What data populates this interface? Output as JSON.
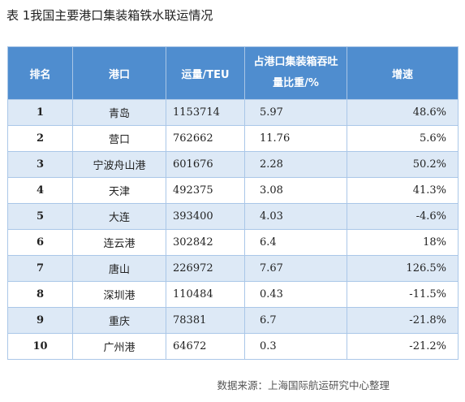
{
  "title": "表 1我国主要港口集装箱铁水联运情况",
  "table": {
    "headers": {
      "rank": "排名",
      "port": "港口",
      "volume": "运量/TEU",
      "share_line1": "占港口集装箱吞吐",
      "share_line2": "量比重/%",
      "growth": "增速"
    },
    "rows": [
      {
        "rank": "1",
        "port": "青岛",
        "volume": "1153714",
        "share": "5.97",
        "growth": "48.6%"
      },
      {
        "rank": "2",
        "port": "营口",
        "volume": "762662",
        "share": "11.76",
        "growth": "5.6%"
      },
      {
        "rank": "3",
        "port": "宁波舟山港",
        "volume": "601676",
        "share": "2.28",
        "growth": "50.2%"
      },
      {
        "rank": "4",
        "port": "天津",
        "volume": "492375",
        "share": "3.08",
        "growth": "41.3%"
      },
      {
        "rank": "5",
        "port": "大连",
        "volume": "393400",
        "share": "4.03",
        "growth": "-4.6%"
      },
      {
        "rank": "6",
        "port": "连云港",
        "volume": "302842",
        "share": "6.4",
        "growth": "18%"
      },
      {
        "rank": "7",
        "port": "唐山",
        "volume": "226972",
        "share": "7.67",
        "growth": "126.5%"
      },
      {
        "rank": "8",
        "port": "深圳港",
        "volume": "110484",
        "share": "0.43",
        "growth": "-11.5%"
      },
      {
        "rank": "9",
        "port": "重庆",
        "volume": "78381",
        "share": "6.7",
        "growth": "-21.8%"
      },
      {
        "rank": "10",
        "port": "广州港",
        "volume": "64672",
        "share": "0.3",
        "growth": "-21.2%"
      }
    ]
  },
  "source": "数据来源：上海国际航运研究中心整理",
  "colors": {
    "header_bg": "#4f8dcf",
    "stripe_bg": "#dde9f6",
    "border": "#aac7e8"
  }
}
